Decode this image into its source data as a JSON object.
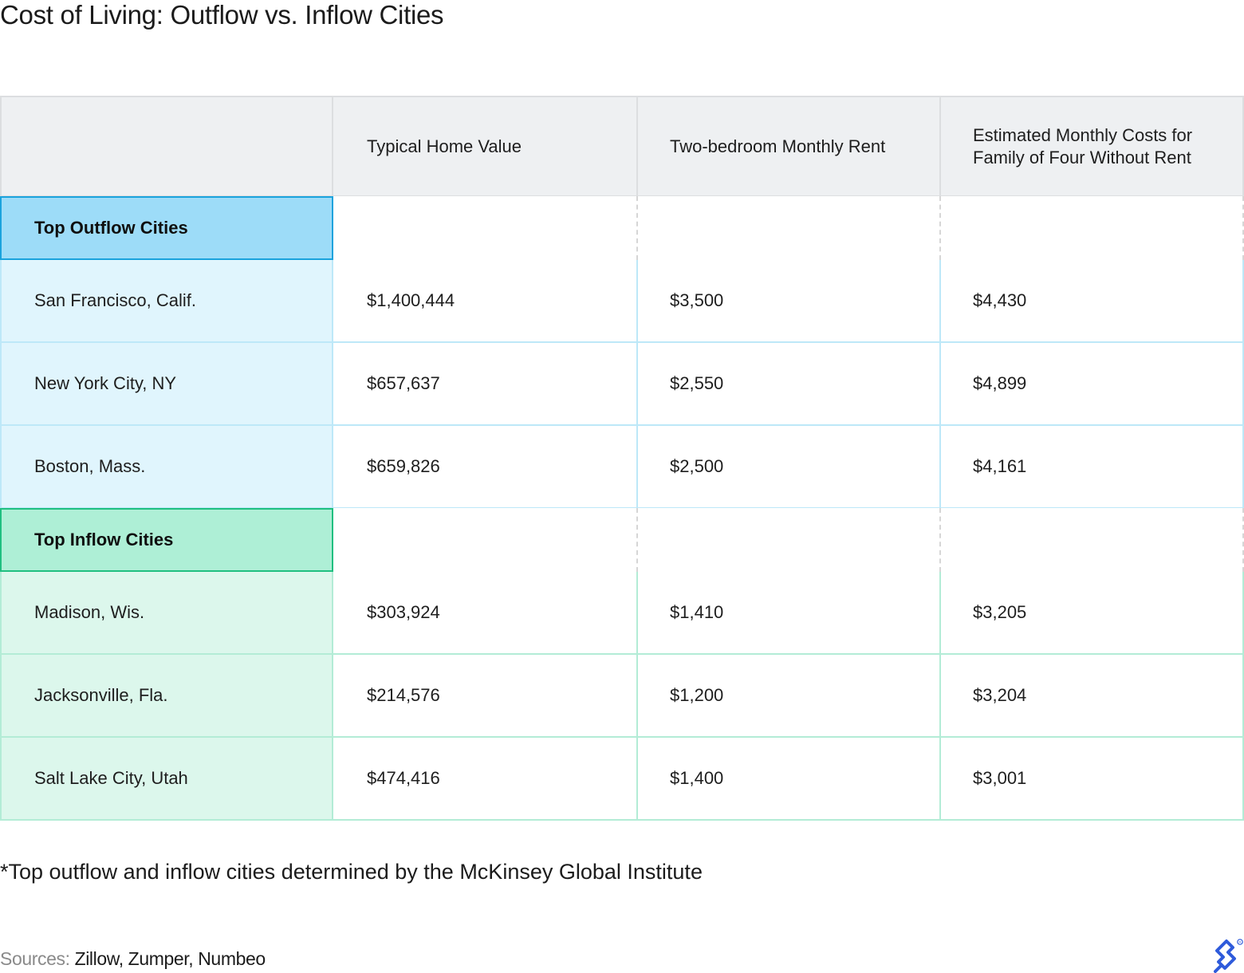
{
  "title": "Cost of Living: Outflow vs. Inflow Cities",
  "colors": {
    "outflow_header_bg": "#9ddcf8",
    "outflow_border": "#1aa3dd",
    "outflow_row_bg": "#e0f5fd",
    "inflow_header_bg": "#aeefd6",
    "inflow_border": "#1fbf80",
    "inflow_row_bg": "#dcf7ec",
    "header_bg": "#eef0f2",
    "logo": "#2f5bdb"
  },
  "chart_data": {
    "type": "table",
    "columns": [
      "",
      "Typical Home Value",
      "Two-bedroom Monthly Rent",
      "Estimated Monthly Costs for Family of Four Without Rent"
    ],
    "groups": [
      {
        "name": "Top Outflow Cities",
        "rows": [
          [
            "San Francisco, Calif.",
            "$1,400,444",
            "$3,500",
            "$4,430"
          ],
          [
            "New York City, NY",
            "$657,637",
            "$2,550",
            "$4,899"
          ],
          [
            "Boston, Mass.",
            "$659,826",
            "$2,500",
            "$4,161"
          ]
        ]
      },
      {
        "name": "Top Inflow Cities",
        "rows": [
          [
            "Madison, Wis.",
            "$303,924",
            "$1,410",
            "$3,205"
          ],
          [
            "Jacksonville, Fla.",
            "$214,576",
            "$1,200",
            "$3,204"
          ],
          [
            "Salt Lake City, Utah",
            "$474,416",
            "$1,400",
            "$3,001"
          ]
        ]
      }
    ]
  },
  "footnote": "*Top outflow and inflow cities determined by the McKinsey Global Institute",
  "sources": {
    "label": "Sources:",
    "value": "Zillow, Zumper, Numbeo"
  },
  "logo_icon": "toptal-logo-icon"
}
